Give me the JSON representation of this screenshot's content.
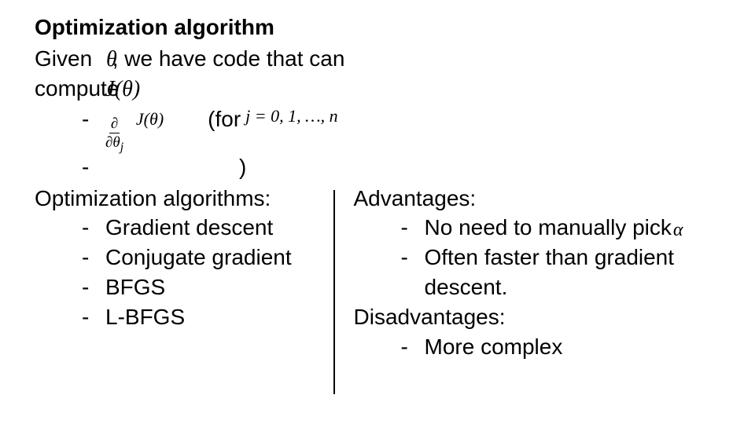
{
  "title": "Optimization algorithm",
  "intro": {
    "given_prefix": "Given",
    "theta": "θ",
    "given_suffix": ", we have code that can",
    "compute_word": "compute",
    "j_of_theta": "J(θ)"
  },
  "derivative": {
    "top": "∂",
    "bot_prefix": "∂θ",
    "bot_sub": "j",
    "j_theta": "J(θ)",
    "for_label": "(for",
    "j_range": "j = 0, 1, …, n",
    "close_paren": ")"
  },
  "left": {
    "heading": "Optimization algorithms:",
    "items": [
      "Gradient descent",
      "Conjugate gradient",
      "BFGS",
      "L-BFGS"
    ]
  },
  "right": {
    "adv_heading": "Advantages:",
    "adv_items": [
      {
        "text": "No need to manually pick",
        "has_alpha": true
      },
      {
        "text": "Often faster than gradient descent.",
        "has_alpha": false
      }
    ],
    "alpha": "α",
    "dis_heading": "Disadvantages:",
    "dis_items": [
      "More complex"
    ]
  },
  "dash": "-",
  "colors": {
    "text": "#000000",
    "background": "#ffffff",
    "divider": "#000000"
  },
  "fonts": {
    "body_pt": 21,
    "title_pt": 21,
    "math_family": "Georgia/Times"
  }
}
